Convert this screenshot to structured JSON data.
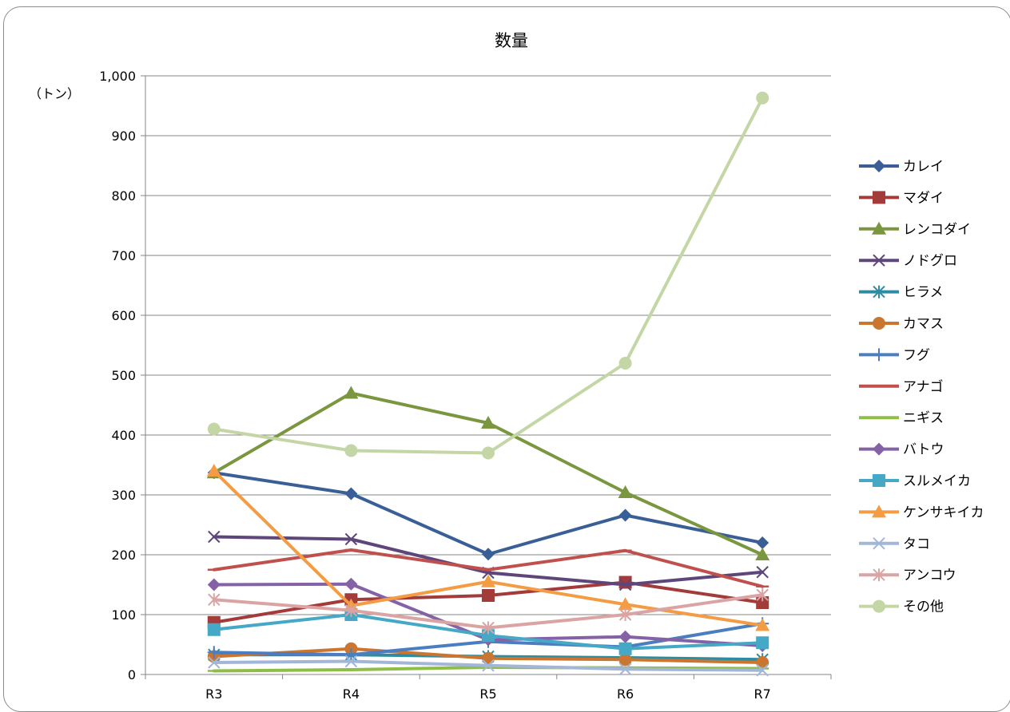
{
  "chart_data": {
    "type": "line",
    "title": "数量",
    "ylabel": "（トン）",
    "xlabel": "",
    "categories": [
      "R3",
      "R4",
      "R5",
      "R6",
      "R7"
    ],
    "ylim": [
      0,
      1000
    ],
    "yticks": [
      0,
      100,
      200,
      300,
      400,
      500,
      600,
      700,
      800,
      900,
      1000
    ],
    "ytick_labels": [
      "0",
      "100",
      "200",
      "300",
      "400",
      "500",
      "600",
      "700",
      "800",
      "900",
      "1,000"
    ],
    "grid": true,
    "legend": "right",
    "series": [
      {
        "name": "カレイ",
        "color": "#3A5F97",
        "marker": "diamond",
        "values": [
          337,
          302,
          201,
          266,
          220
        ]
      },
      {
        "name": "マダイ",
        "color": "#A23B3A",
        "marker": "square",
        "values": [
          87,
          125,
          132,
          154,
          120
        ]
      },
      {
        "name": "レンコダイ",
        "color": "#7A963E",
        "marker": "triangle",
        "values": [
          337,
          470,
          420,
          304,
          200
        ]
      },
      {
        "name": "ノドグロ",
        "color": "#5E467A",
        "marker": "x",
        "values": [
          230,
          226,
          170,
          150,
          171
        ]
      },
      {
        "name": "ヒラメ",
        "color": "#2F8BA0",
        "marker": "star",
        "values": [
          33,
          33,
          30,
          28,
          25
        ]
      },
      {
        "name": "カマス",
        "color": "#CB7630",
        "marker": "circle",
        "values": [
          30,
          43,
          27,
          25,
          20
        ]
      },
      {
        "name": "フグ",
        "color": "#4A7EC1",
        "marker": "plus",
        "values": [
          37,
          33,
          55,
          46,
          85
        ]
      },
      {
        "name": "アナゴ",
        "color": "#C0504D",
        "marker": "dash",
        "values": [
          175,
          208,
          175,
          207,
          147
        ]
      },
      {
        "name": "ニギス",
        "color": "#8FBE46",
        "marker": "dash",
        "values": [
          6,
          8,
          12,
          11,
          10
        ]
      },
      {
        "name": "バトウ",
        "color": "#8462A5",
        "marker": "diamond",
        "values": [
          150,
          151,
          58,
          63,
          48
        ]
      },
      {
        "name": "スルメイカ",
        "color": "#44A8C6",
        "marker": "square",
        "values": [
          75,
          100,
          65,
          43,
          53
        ]
      },
      {
        "name": "ケンサキイカ",
        "color": "#F39C44",
        "marker": "triangle",
        "values": [
          340,
          115,
          155,
          117,
          82
        ]
      },
      {
        "name": "タコ",
        "color": "#A2B6D8",
        "marker": "x",
        "values": [
          20,
          22,
          15,
          9,
          7
        ]
      },
      {
        "name": "アンコウ",
        "color": "#D9A4A3",
        "marker": "star",
        "values": [
          125,
          107,
          78,
          100,
          133
        ]
      },
      {
        "name": "その他",
        "color": "#C4D6A5",
        "marker": "circle",
        "values": [
          410,
          374,
          370,
          520,
          963
        ]
      }
    ]
  }
}
